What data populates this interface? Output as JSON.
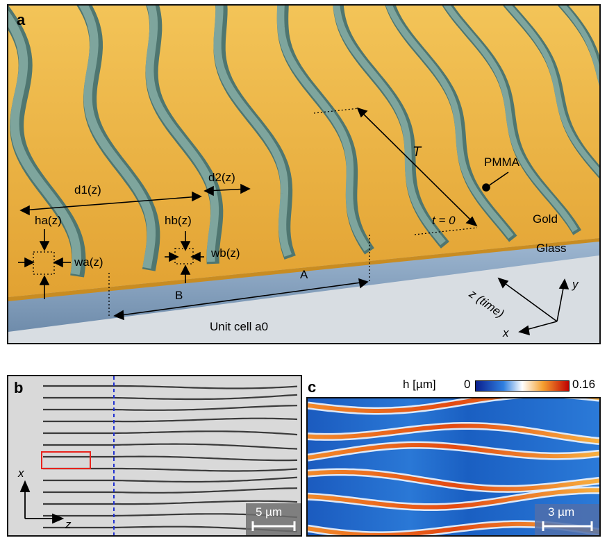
{
  "panel_a": {
    "label": "a",
    "annotations": {
      "d1": "d1(z)",
      "d2": "d2(z)",
      "ha": "ha(z)",
      "hb": "hb(z)",
      "wa": "wa(z)",
      "wb": "wb(z)",
      "A": "A",
      "B": "B",
      "unit_cell": "Unit cell a0",
      "T": "T",
      "t0": "t = 0",
      "pmma": "PMMA",
      "gold": "Gold",
      "glass": "Glass",
      "z_axis": "z (time)",
      "y_axis": "y",
      "x_axis": "x"
    },
    "colors": {
      "gold": "#e8ad3d",
      "waveguide": "#6f9a92",
      "glass": "#8ea9c6"
    }
  },
  "panel_b": {
    "label": "b",
    "axis_x": "x",
    "axis_z": "z",
    "scalebar": "5 µm",
    "colors": {
      "lines": "#3a3a3a",
      "dashed": "#1f2fd1",
      "box": "#e8231c"
    }
  },
  "panel_c": {
    "label": "c",
    "colorbar_label": "h [µm]",
    "colorbar_min": "0",
    "colorbar_max": "0.16",
    "scalebar": "3 µm"
  }
}
